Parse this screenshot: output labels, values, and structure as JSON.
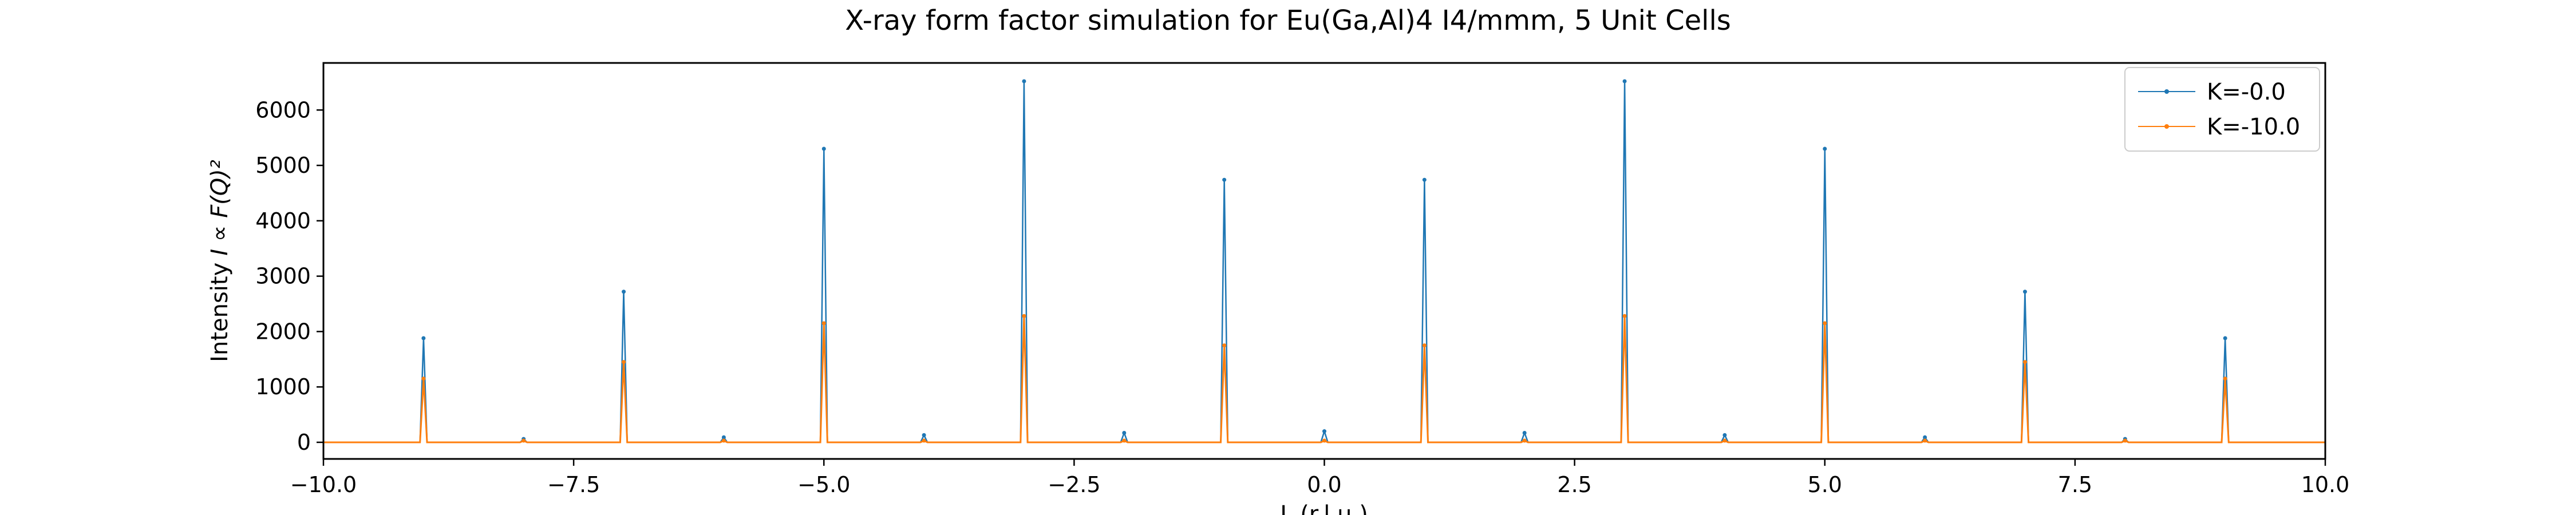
{
  "chart_data": {
    "type": "line",
    "title": "X-ray form factor simulation for Eu(Ga,Al)4 I4/mmm, 5 Unit Cells",
    "xlabel": "L (r.l.u.)",
    "ylabel": "Intensity",
    "ylabel_math": "I ∝ F(Q)²",
    "xlim": [
      -10.0,
      10.0
    ],
    "ylim": [
      -300,
      6850
    ],
    "xticks": [
      "−10.0",
      "−7.5",
      "−5.0",
      "−2.5",
      "0.0",
      "2.5",
      "5.0",
      "7.5",
      "10.0"
    ],
    "xtick_values": [
      -10.0,
      -7.5,
      -5.0,
      -2.5,
      0.0,
      2.5,
      5.0,
      7.5,
      10.0
    ],
    "yticks": [
      "0",
      "1000",
      "2000",
      "3000",
      "4000",
      "5000",
      "6000"
    ],
    "ytick_values": [
      0,
      1000,
      2000,
      3000,
      4000,
      5000,
      6000
    ],
    "legend_position": "top-right",
    "series": [
      {
        "name": "K=-0.0",
        "color": "#1f77b4",
        "peaks": [
          {
            "x": -9,
            "y": 1880
          },
          {
            "x": -8,
            "y": 60
          },
          {
            "x": -7,
            "y": 2720
          },
          {
            "x": -6,
            "y": 90
          },
          {
            "x": -5,
            "y": 5300
          },
          {
            "x": -4,
            "y": 130
          },
          {
            "x": -3,
            "y": 6520
          },
          {
            "x": -2,
            "y": 170
          },
          {
            "x": -1,
            "y": 4740
          },
          {
            "x": 0,
            "y": 200
          },
          {
            "x": 1,
            "y": 4740
          },
          {
            "x": 2,
            "y": 170
          },
          {
            "x": 3,
            "y": 6520
          },
          {
            "x": 4,
            "y": 130
          },
          {
            "x": 5,
            "y": 5300
          },
          {
            "x": 6,
            "y": 90
          },
          {
            "x": 7,
            "y": 2720
          },
          {
            "x": 8,
            "y": 60
          },
          {
            "x": 9,
            "y": 1880
          }
        ]
      },
      {
        "name": "K=-10.0",
        "color": "#ff7f0e",
        "peaks": [
          {
            "x": -9,
            "y": 1150
          },
          {
            "x": -8,
            "y": 30
          },
          {
            "x": -7,
            "y": 1450
          },
          {
            "x": -6,
            "y": 30
          },
          {
            "x": -5,
            "y": 2150
          },
          {
            "x": -4,
            "y": 30
          },
          {
            "x": -3,
            "y": 2280
          },
          {
            "x": -2,
            "y": 30
          },
          {
            "x": -1,
            "y": 1750
          },
          {
            "x": 0,
            "y": 30
          },
          {
            "x": 1,
            "y": 1750
          },
          {
            "x": 2,
            "y": 30
          },
          {
            "x": 3,
            "y": 2280
          },
          {
            "x": 4,
            "y": 30
          },
          {
            "x": 5,
            "y": 2150
          },
          {
            "x": 6,
            "y": 30
          },
          {
            "x": 7,
            "y": 1450
          },
          {
            "x": 8,
            "y": 30
          },
          {
            "x": 9,
            "y": 1150
          }
        ]
      }
    ]
  }
}
